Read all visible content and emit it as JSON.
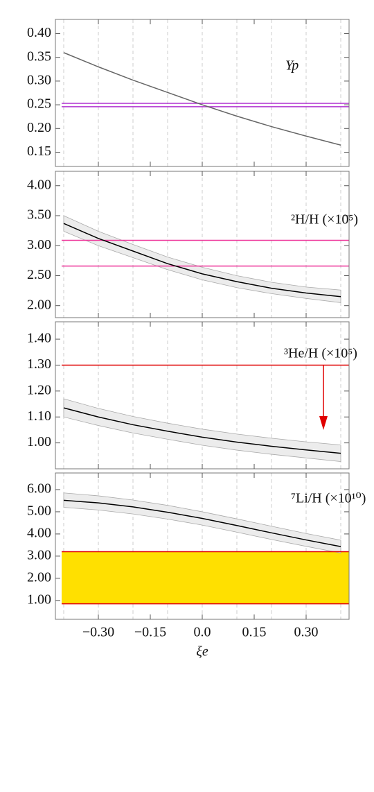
{
  "chart_data": [
    {
      "type": "line",
      "annotation": "Yp",
      "xlim": [
        -0.424,
        0.424
      ],
      "ylim": [
        0.12,
        0.43
      ],
      "yticks": [
        0.15,
        {
          "value": 0.2,
          "label": "0.20"
        },
        0.25,
        {
          "value": 0.3,
          "label": "0.30"
        },
        0.35,
        {
          "value": 0.4,
          "label": "0.40"
        }
      ],
      "xgrid": [
        -0.4,
        -0.3,
        -0.2,
        -0.1,
        0,
        0.1,
        0.2,
        0.3,
        0.4
      ],
      "x": [
        -0.4,
        -0.3,
        -0.2,
        -0.1,
        0,
        0.1,
        0.2,
        0.3,
        0.4
      ],
      "values": [
        0.36,
        0.33,
        0.302,
        0.276,
        0.25,
        0.226,
        0.204,
        0.184,
        0.165
      ],
      "color": "#666666",
      "hlines": [
        0.253,
        0.246
      ],
      "hline_color": "#b030d0"
    },
    {
      "type": "line",
      "annotation": "²H/H (×10⁵)",
      "xlim": [
        -0.424,
        0.424
      ],
      "ylim": [
        1.8,
        4.24
      ],
      "yticks": [
        {
          "value": 2,
          "label": "2.00"
        },
        {
          "value": 2.5,
          "label": "2.50"
        },
        {
          "value": 3,
          "label": "3.00"
        },
        {
          "value": 3.5,
          "label": "3.50"
        },
        {
          "value": 4,
          "label": "4.00"
        }
      ],
      "xgrid": [
        -0.4,
        -0.3,
        -0.2,
        -0.1,
        0,
        0.1,
        0.2,
        0.3,
        0.4
      ],
      "x": [
        -0.4,
        -0.3,
        -0.2,
        -0.1,
        0,
        0.1,
        0.2,
        0.3,
        0.4
      ],
      "values": [
        3.37,
        3.12,
        2.91,
        2.7,
        2.53,
        2.4,
        2.29,
        2.21,
        2.15
      ],
      "band_upper": [
        3.5,
        3.24,
        3.02,
        2.81,
        2.64,
        2.5,
        2.39,
        2.31,
        2.26
      ],
      "band_lower": [
        3.24,
        3.0,
        2.8,
        2.6,
        2.43,
        2.3,
        2.2,
        2.12,
        2.05
      ],
      "color": "#000000",
      "hlines": [
        3.09,
        2.66
      ],
      "hline_color": "#ee3399"
    },
    {
      "type": "line",
      "annotation": "³He/H (×10⁵)",
      "xlim": [
        -0.424,
        0.424
      ],
      "ylim": [
        0.9,
        1.467
      ],
      "yticks": [
        {
          "value": 1,
          "label": "1.00"
        },
        {
          "value": 1.1,
          "label": "1.10"
        },
        {
          "value": 1.2,
          "label": "1.20"
        },
        {
          "value": 1.3,
          "label": "1.30"
        },
        {
          "value": 1.4,
          "label": "1.40"
        }
      ],
      "xgrid": [
        -0.4,
        -0.3,
        -0.2,
        -0.1,
        0,
        0.1,
        0.2,
        0.3,
        0.4
      ],
      "x": [
        -0.4,
        -0.3,
        -0.2,
        -0.1,
        0,
        0.1,
        0.2,
        0.3,
        0.4
      ],
      "values": [
        1.135,
        1.1,
        1.07,
        1.045,
        1.022,
        1.003,
        0.987,
        0.973,
        0.96
      ],
      "band_upper": [
        1.17,
        1.133,
        1.102,
        1.076,
        1.053,
        1.034,
        1.018,
        1.004,
        0.992
      ],
      "band_lower": [
        1.1,
        1.067,
        1.038,
        1.014,
        0.991,
        0.972,
        0.956,
        0.942,
        0.928
      ],
      "color": "#000000",
      "hlines": [
        1.3
      ],
      "hline_color": "#e00000"
    },
    {
      "type": "line",
      "annotation": "⁷Li/H (×10¹⁰)",
      "xlim": [
        -0.424,
        0.424
      ],
      "ylim": [
        0.15,
        6.75
      ],
      "yticks": [
        {
          "value": 1,
          "label": "1.00"
        },
        {
          "value": 2,
          "label": "2.00"
        },
        {
          "value": 3,
          "label": "3.00"
        },
        {
          "value": 4,
          "label": "4.00"
        },
        {
          "value": 5,
          "label": "5.00"
        },
        {
          "value": 6,
          "label": "6.00"
        }
      ],
      "xgrid": [
        -0.4,
        -0.3,
        -0.2,
        -0.1,
        0,
        0.1,
        0.2,
        0.3,
        0.4
      ],
      "xticks": [
        {
          "value": -0.3,
          "label": "−0.30"
        },
        {
          "value": -0.15,
          "label": "−0.15"
        },
        {
          "value": 0,
          "label": "0.0"
        },
        {
          "value": 0.15,
          "label": "0.15"
        },
        {
          "value": 0.3,
          "label": "0.30"
        }
      ],
      "xlabel": "ξe",
      "x": [
        -0.4,
        -0.3,
        -0.2,
        -0.1,
        0,
        0.1,
        0.2,
        0.3,
        0.4
      ],
      "values": [
        5.52,
        5.4,
        5.22,
        4.98,
        4.7,
        4.38,
        4.05,
        3.73,
        3.43
      ],
      "band_upper": [
        5.85,
        5.72,
        5.53,
        5.29,
        5.0,
        4.68,
        4.35,
        4.02,
        3.72
      ],
      "band_lower": [
        5.2,
        5.08,
        4.9,
        4.67,
        4.4,
        4.08,
        3.75,
        3.44,
        3.14
      ],
      "color": "#000000",
      "hlines": [
        3.2,
        0.85
      ],
      "hline_color": "#e00000",
      "fill_band": [
        0.85,
        3.2
      ],
      "fill_color": "#ffe000"
    }
  ]
}
